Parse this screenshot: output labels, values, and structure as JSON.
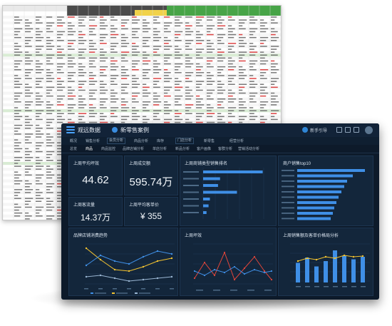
{
  "header": {
    "app_name": "观远数据",
    "tab_title": "新零售案例",
    "user_name": "新手引导"
  },
  "nav_primary": [
    {
      "label": "概况"
    },
    {
      "label": "销售分析"
    },
    {
      "label": "会员分析"
    },
    {
      "label": "商品分析"
    },
    {
      "label": "库存"
    },
    {
      "label": "门店分析"
    },
    {
      "label": "新零售"
    },
    {
      "label": "经营分析"
    }
  ],
  "nav_secondary": [
    {
      "label": "总览"
    },
    {
      "label": "商品"
    },
    {
      "label": "商品监控"
    },
    {
      "label": "品牌店铺分析"
    },
    {
      "label": "单店分析"
    },
    {
      "label": "新品分析"
    },
    {
      "label": "客户画像"
    },
    {
      "label": "客群分析"
    },
    {
      "label": "营销活动分析"
    }
  ],
  "kpis": [
    {
      "label": "上周平均坪效",
      "value": "44.62"
    },
    {
      "label": "上周成交额",
      "value": "595.74万"
    },
    {
      "label": "上周客流量",
      "value": "14.37万"
    },
    {
      "label": "上周平均客单价",
      "value": "¥ 355"
    }
  ],
  "panels": {
    "ranking_title": "上周商铺类型销售排名",
    "top10_title": "商户销售top10",
    "trend_title": "品牌店铺消费趋势",
    "pingxiao_title": "上周坪效",
    "scatter_title": "上周销售额及客单价格局分析"
  },
  "colors": {
    "background": "#0d1a2a",
    "card": "#13263b",
    "accent_blue": "#3f8fe6",
    "accent_yellow": "#f2c230",
    "accent_red": "#e0453a"
  }
}
